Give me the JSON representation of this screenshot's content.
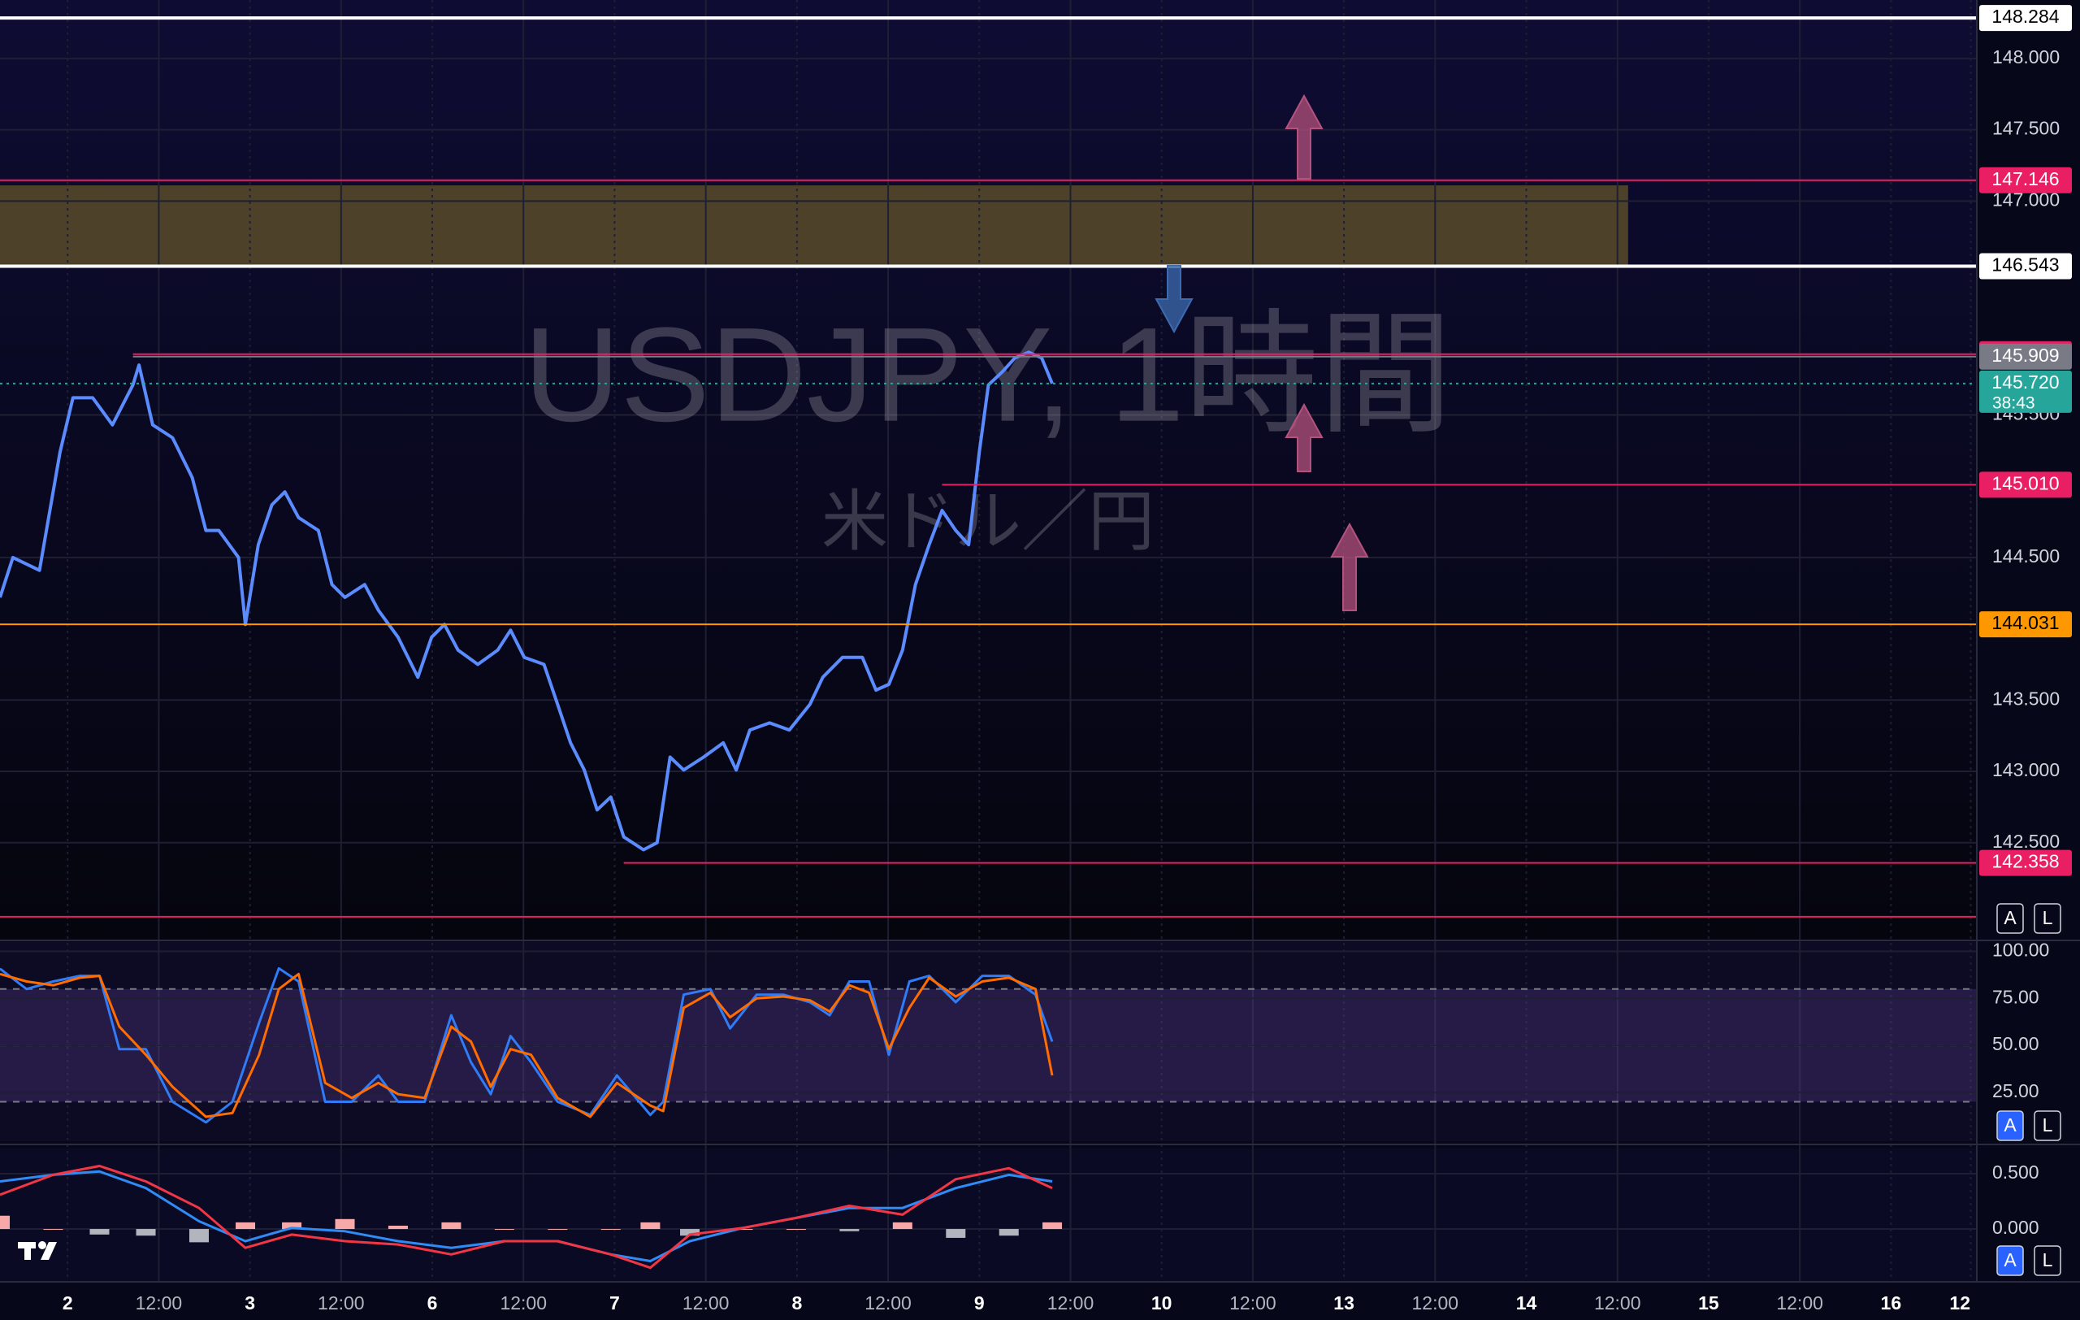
{
  "chart_data": [
    {
      "type": "line",
      "title": "USDJPY, 1時間",
      "subtitle": "米ドル／円",
      "x": [
        -8.9,
        -7.2,
        -3.7,
        -1.0,
        0.7,
        3.3,
        5.9,
        8.6,
        9.4,
        11.2,
        13.8,
        16.4,
        18.2,
        19.9,
        22.5,
        23.4,
        25.1,
        26.9,
        28.6,
        30.4,
        33.0,
        34.8,
        36.5,
        39.1,
        40.9,
        43.5,
        46.1,
        47.9,
        49.6,
        51.4,
        54.0,
        56.6,
        58.3,
        60.1,
        62.7,
        64.5,
        66.2,
        68.0,
        69.7,
        71.5,
        73.2,
        75.8,
        77.6,
        79.3,
        81.1,
        83.7,
        86.3,
        88.0,
        89.8,
        92.4,
        95.0,
        97.7,
        99.4,
        102.0,
        104.6,
        106.4,
        108.1,
        109.9,
        111.6,
        113.4,
        115.1,
        116.9,
        118.6,
        120.0,
        121.2,
        123.0,
        124.7,
        126.5,
        128.2,
        129.6
      ],
      "values": [
        144.22,
        144.5,
        144.41,
        145.24,
        145.62,
        145.62,
        145.43,
        145.71,
        145.85,
        145.43,
        145.34,
        145.06,
        144.69,
        144.69,
        144.5,
        144.03,
        144.59,
        144.87,
        144.96,
        144.78,
        144.69,
        144.31,
        144.22,
        144.31,
        144.13,
        143.94,
        143.66,
        143.94,
        144.03,
        143.85,
        143.75,
        143.85,
        143.99,
        143.8,
        143.75,
        143.47,
        143.2,
        143.01,
        142.73,
        142.82,
        142.54,
        142.45,
        142.5,
        143.1,
        143.01,
        143.1,
        143.2,
        143.01,
        143.29,
        143.34,
        143.29,
        143.47,
        143.66,
        143.8,
        143.8,
        143.57,
        143.61,
        143.85,
        144.31,
        144.59,
        144.83,
        144.69,
        144.59,
        145.24,
        145.71,
        145.8,
        145.9,
        145.94,
        145.9,
        145.72
      ],
      "color": "#5b8cff",
      "xlim": [
        -8.9,
        251.3
      ],
      "xticks": [
        {
          "value": 0,
          "label": "2"
        },
        {
          "value": 12,
          "label": "12:00"
        },
        {
          "value": 24,
          "label": "3"
        },
        {
          "value": 36,
          "label": "12:00"
        },
        {
          "value": 48,
          "label": "6"
        },
        {
          "value": 60,
          "label": "12:00"
        },
        {
          "value": 72,
          "label": "7"
        },
        {
          "value": 84,
          "label": "12:00"
        },
        {
          "value": 96,
          "label": "8"
        },
        {
          "value": 108,
          "label": "12:00"
        },
        {
          "value": 120,
          "label": "9"
        },
        {
          "value": 132,
          "label": "12:00"
        },
        {
          "value": 144,
          "label": "10"
        },
        {
          "value": 156,
          "label": "12:00"
        },
        {
          "value": 168,
          "label": "13"
        },
        {
          "value": 180,
          "label": "12:00"
        },
        {
          "value": 192,
          "label": "14"
        },
        {
          "value": 204,
          "label": "12:00"
        },
        {
          "value": 216,
          "label": "15"
        },
        {
          "value": 228,
          "label": "12:00"
        },
        {
          "value": 240,
          "label": "16"
        },
        {
          "value": 250.5,
          "label": "12"
        }
      ],
      "ylim": [
        141.82,
        148.41
      ],
      "yticks": [
        {
          "value": 148,
          "label": "148.000"
        },
        {
          "value": 147.5,
          "label": "147.500"
        },
        {
          "value": 147,
          "label": "147.000"
        },
        {
          "value": 145.5,
          "label": "145.500"
        },
        {
          "value": 144.5,
          "label": "144.500"
        },
        {
          "value": 143.5,
          "label": "143.500"
        },
        {
          "value": 143,
          "label": "143.000"
        },
        {
          "value": 142.5,
          "label": "142.500"
        }
      ],
      "zone": {
        "x": [
          -8.9,
          205.4
        ],
        "y": [
          146.55,
          147.11
        ],
        "color": "#4d4229"
      },
      "levels": [
        {
          "value": 148.284,
          "label": "148.284",
          "color": "#ffffff",
          "text_color": "#000000"
        },
        {
          "value": 147.146,
          "label": "147.146",
          "color": "#e91e63",
          "text_color": "#ffffff"
        },
        {
          "value": 146.543,
          "label": "146.543",
          "color": "#ffffff",
          "text_color": "#000000"
        },
        {
          "value": 145.926,
          "label": "145.926",
          "color": "#e91e63",
          "text_color": "#ffffff",
          "start": 8.6
        },
        {
          "value": 145.909,
          "label": "145.909",
          "color": "#787b86",
          "text_color": "#ffffff",
          "start": 8.6
        },
        {
          "value": 145.72,
          "label": "145.720",
          "color": "#26a69a",
          "text_color": "#ffffff",
          "style": "dotted"
        },
        {
          "value": 145.01,
          "label": "145.010",
          "color": "#e91e63",
          "text_color": "#ffffff",
          "start": 115.1
        },
        {
          "value": 144.031,
          "label": "144.031",
          "color": "#ff9800",
          "text_color": "#000000"
        },
        {
          "value": 142.358,
          "label": "142.358",
          "color": "#e91e63",
          "text_color": "#ffffff",
          "start": 73.2
        },
        {
          "value": 141.98,
          "color": "#e91e63"
        }
      ],
      "countdown": "38:43",
      "grid": true,
      "scale_buttons": [
        "A",
        "L"
      ]
    },
    {
      "type": "line",
      "x": [
        -8.9,
        -5.4,
        -1.9,
        1.6,
        4.2,
        6.8,
        10.3,
        13.8,
        18.2,
        21.7,
        25.2,
        27.8,
        30.4,
        33.9,
        37.4,
        40.9,
        43.5,
        47.0,
        50.5,
        53.1,
        55.7,
        58.3,
        61.0,
        64.5,
        68.8,
        72.3,
        76.7,
        78.4,
        81.1,
        84.6,
        87.2,
        90.7,
        94.2,
        97.7,
        100.3,
        102.9,
        105.5,
        108.1,
        110.8,
        113.4,
        116.9,
        120.4,
        123.9,
        127.4,
        129.6
      ],
      "series": [
        {
          "color": "#2f7cf6",
          "values": [
            90.8,
            80,
            84,
            87,
            87,
            48,
            48,
            20,
            9,
            20,
            62,
            91,
            84,
            20,
            20,
            34,
            20,
            20,
            66,
            41,
            24,
            55,
            41,
            20,
            13,
            34,
            13,
            20,
            77,
            80,
            59,
            77,
            77,
            73,
            66,
            84,
            84,
            45,
            84,
            87,
            73,
            87,
            87,
            77,
            52
          ]
        },
        {
          "color": "#ff6d00",
          "values": [
            88,
            84,
            82,
            86,
            87,
            60,
            45,
            28,
            12,
            14,
            45,
            80,
            88,
            30,
            22,
            30,
            24,
            22,
            60,
            52,
            28,
            48,
            45,
            22,
            12,
            30,
            18,
            15,
            70,
            78,
            65,
            75,
            76,
            74,
            68,
            82,
            78,
            48,
            70,
            86,
            76,
            84,
            86,
            80,
            34
          ]
        }
      ],
      "xlim": [
        -8.9,
        251.3
      ],
      "ylim": [
        -1,
        105
      ],
      "yticks": [
        {
          "value": 100,
          "label": "100.00"
        },
        {
          "value": 75,
          "label": "75.00"
        },
        {
          "value": 50,
          "label": "50.00"
        },
        {
          "value": 25,
          "label": "25.00"
        }
      ],
      "band": [
        20,
        80
      ],
      "guides": [
        20,
        50,
        80
      ],
      "grid": true
    },
    {
      "type": "line",
      "x": [
        -8.9,
        -1.9,
        4.2,
        10.3,
        17.3,
        23.4,
        29.5,
        36.5,
        43.5,
        50.5,
        57.5,
        64.5,
        71.5,
        76.7,
        81.9,
        88.9,
        95.9,
        102.9,
        109.9,
        116.9,
        123.9,
        129.6
      ],
      "series": [
        {
          "color": "#2f8cf6",
          "values": [
            0.43,
            0.49,
            0.52,
            0.37,
            0.07,
            -0.11,
            0.01,
            -0.02,
            -0.11,
            -0.17,
            -0.11,
            -0.11,
            -0.23,
            -0.29,
            -0.11,
            0.01,
            0.1,
            0.19,
            0.19,
            0.37,
            0.49,
            0.43
          ]
        },
        {
          "color": "#f23645",
          "values": [
            0.31,
            0.49,
            0.57,
            0.43,
            0.19,
            -0.17,
            -0.05,
            -0.11,
            -0.14,
            -0.23,
            -0.11,
            -0.11,
            -0.23,
            -0.35,
            -0.05,
            0.01,
            0.1,
            0.21,
            0.13,
            0.45,
            0.55,
            0.37
          ]
        }
      ],
      "histogram": {
        "values": [
          0.12,
          0,
          -0.05,
          -0.06,
          -0.12,
          0.06,
          0.06,
          0.09,
          0.03,
          0.06,
          0,
          0,
          0,
          0.06,
          -0.06,
          0,
          0,
          -0.02,
          0.06,
          -0.08,
          -0.06,
          0.06
        ],
        "up_color": "#f7a8a8",
        "down_color": "#b2b5be"
      },
      "xlim": [
        -8.9,
        251.3
      ],
      "ylim": [
        -0.47,
        0.728
      ],
      "yticks": [
        {
          "value": 0.5,
          "label": "0.500"
        },
        {
          "value": 0,
          "label": "0.000"
        }
      ],
      "grid": true
    }
  ]
}
